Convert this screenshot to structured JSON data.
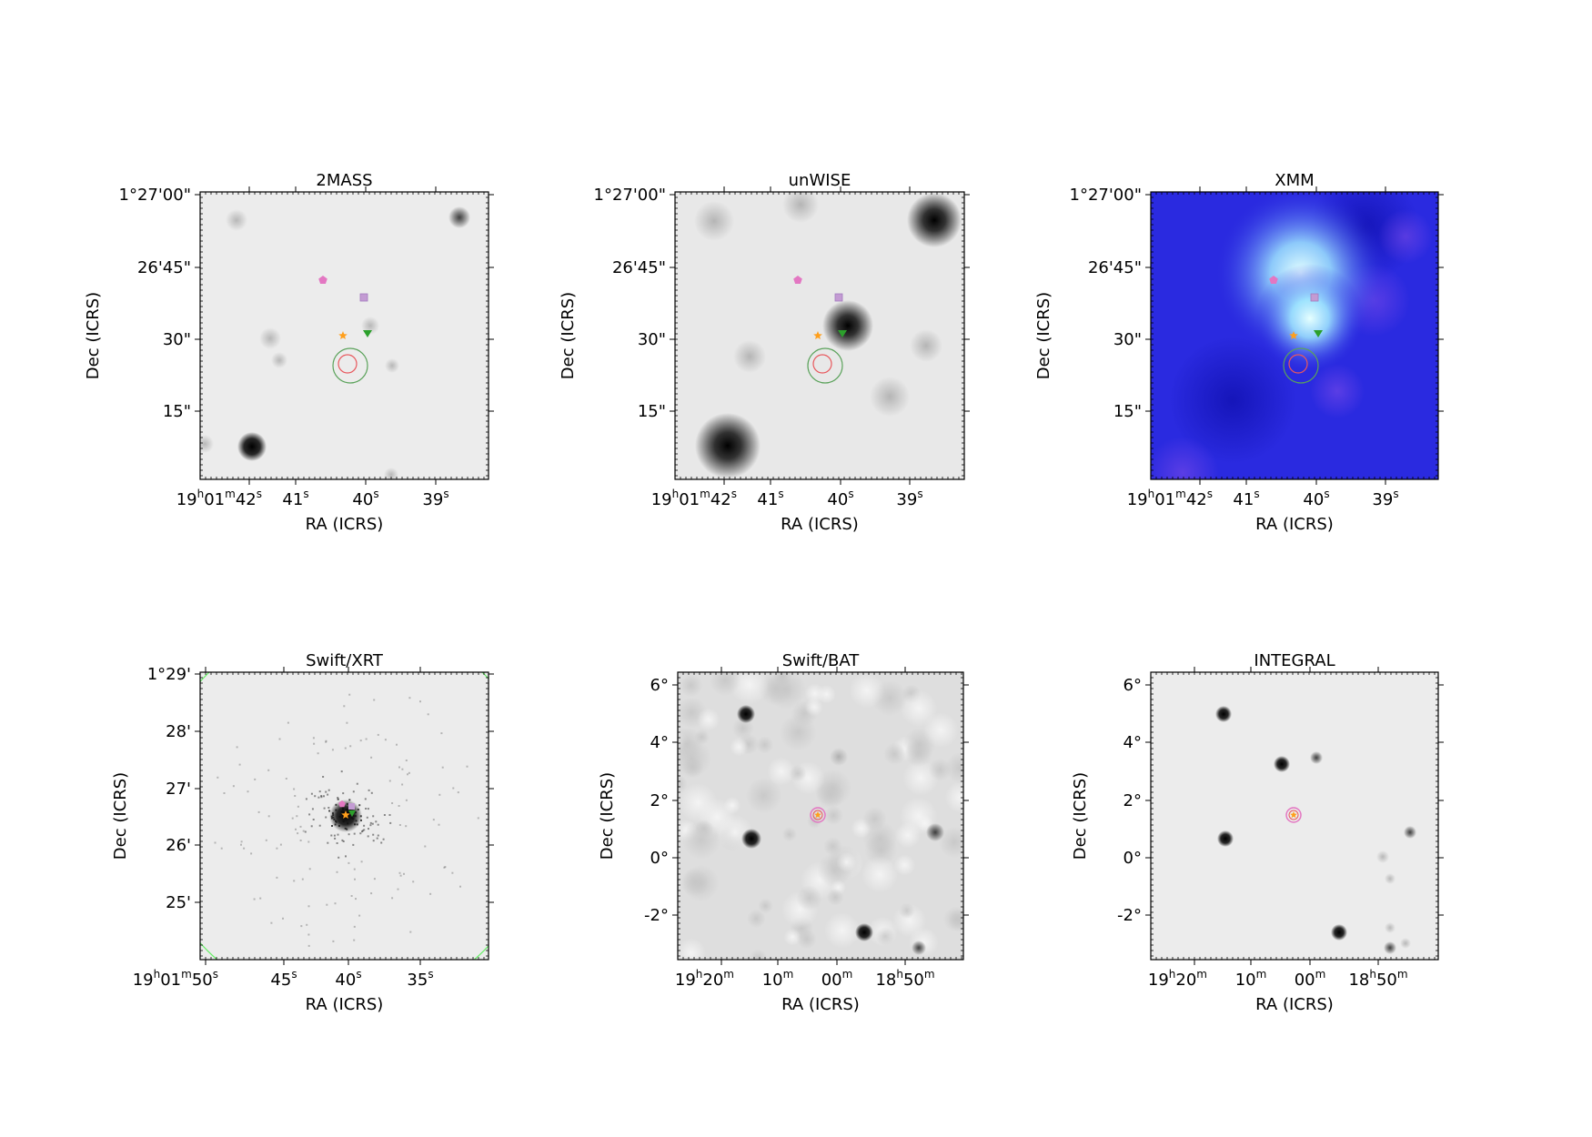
{
  "figure": {
    "panels": [
      {
        "title": "2MASS",
        "xlabel": "RA (ICRS)",
        "ylabel": "Dec (ICRS)",
        "xticks": [
          {
            "pre": "19",
            "sup1": "h",
            "mid": "01",
            "sup2": "m",
            "val": "42",
            "sup3": "s"
          },
          {
            "val": "41",
            "sup3": "s"
          },
          {
            "val": "40",
            "sup3": "s"
          },
          {
            "val": "39",
            "sup3": "s"
          }
        ],
        "yticks": [
          "1°27'00\"",
          "26'45\"",
          "30\"",
          "15\""
        ],
        "background": "gray",
        "colors": {
          "background": "#ececec"
        }
      },
      {
        "title": "unWISE",
        "xlabel": "RA (ICRS)",
        "ylabel": "Dec (ICRS)",
        "xticks": [
          {
            "pre": "19",
            "sup1": "h",
            "mid": "01",
            "sup2": "m",
            "val": "42",
            "sup3": "s"
          },
          {
            "val": "41",
            "sup3": "s"
          },
          {
            "val": "40",
            "sup3": "s"
          },
          {
            "val": "39",
            "sup3": "s"
          }
        ],
        "yticks": [
          "1°27'00\"",
          "26'45\"",
          "30\"",
          "15\""
        ],
        "background": "gray",
        "colors": {
          "background": "#e8e8e8"
        }
      },
      {
        "title": "XMM",
        "xlabel": "RA (ICRS)",
        "ylabel": "Dec (ICRS)",
        "xticks": [
          {
            "pre": "19",
            "sup1": "h",
            "mid": "01",
            "sup2": "m",
            "val": "42",
            "sup3": "s"
          },
          {
            "val": "41",
            "sup3": "s"
          },
          {
            "val": "40",
            "sup3": "s"
          },
          {
            "val": "39",
            "sup3": "s"
          }
        ],
        "yticks": [
          "1°27'00\"",
          "26'45\"",
          "30\"",
          "15\""
        ],
        "background": "blue",
        "colors": {
          "background": "#2a2ae0",
          "glow": "#d8ffff"
        }
      },
      {
        "title": "Swift/XRT",
        "xlabel": "RA (ICRS)",
        "ylabel": "Dec (ICRS)",
        "xticks": [
          {
            "pre": "19",
            "sup1": "h",
            "mid": "01",
            "sup2": "m",
            "val": "50",
            "sup3": "s"
          },
          {
            "val": "45",
            "sup3": "s"
          },
          {
            "val": "40",
            "sup3": "s"
          },
          {
            "val": "35",
            "sup3": "s"
          }
        ],
        "yticks": [
          "1°29'",
          "28'",
          "27'",
          "26'",
          "25'"
        ],
        "background": "gray",
        "colors": {
          "background": "#ececec",
          "circle": "#66ee66"
        }
      },
      {
        "title": "Swift/BAT",
        "xlabel": "RA (ICRS)",
        "ylabel": "Dec (ICRS)",
        "xticks": [
          {
            "pre": "19",
            "sup1": "h",
            "val": "20",
            "sup3": "m"
          },
          {
            "val": "10",
            "sup3": "m"
          },
          {
            "val": "00",
            "sup3": "m"
          },
          {
            "pre": "18",
            "sup1": "h",
            "val": "50",
            "sup3": "m"
          }
        ],
        "yticks": [
          "6°",
          "4°",
          "2°",
          "0°",
          "-2°"
        ],
        "background": "gray",
        "colors": {
          "background": "#dedede"
        }
      },
      {
        "title": "INTEGRAL",
        "xlabel": "RA (ICRS)",
        "ylabel": "Dec (ICRS)",
        "xticks": [
          {
            "pre": "19",
            "sup1": "h",
            "val": "20",
            "sup3": "m"
          },
          {
            "val": "10",
            "sup3": "m"
          },
          {
            "val": "00",
            "sup3": "m"
          },
          {
            "pre": "18",
            "sup1": "h",
            "val": "50",
            "sup3": "m"
          }
        ],
        "yticks": [
          "6°",
          "4°",
          "2°",
          "0°",
          "-2°"
        ],
        "background": "gray",
        "colors": {
          "background": "#ececec"
        }
      }
    ]
  },
  "marker_colors": {
    "pentagon": "#e377c2",
    "square": "#c39bd3",
    "star": "#ff9f1c",
    "triangle": "#2ca02c",
    "circle_small": "#e8585d",
    "circle_large": "#5aa25a"
  }
}
